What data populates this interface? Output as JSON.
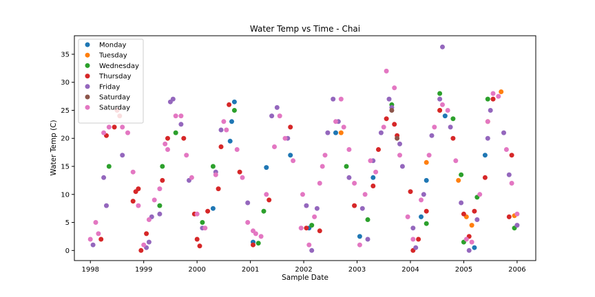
{
  "chart_data": {
    "type": "scatter",
    "title": "Water Temp vs Time - Chai",
    "xlabel": "Sample Date",
    "ylabel": "Water Temp (C)",
    "xlim": [
      1997.7,
      2006.35
    ],
    "ylim": [
      -1.8,
      38.3
    ],
    "xticks": [
      1998,
      1999,
      2000,
      2001,
      2002,
      2003,
      2004,
      2005,
      2006
    ],
    "yticks": [
      0,
      5,
      10,
      15,
      20,
      25,
      30,
      35
    ],
    "legend_position": "upper-left",
    "grid": false,
    "series": [
      {
        "name": "Monday",
        "color": "#1f77b4",
        "points": [
          [
            2000.3,
            7.5
          ],
          [
            2000.65,
            23.0
          ],
          [
            2000.62,
            19.5
          ],
          [
            2000.7,
            26.5
          ],
          [
            2001.05,
            1.5
          ],
          [
            2001.3,
            14.8
          ],
          [
            2001.75,
            17.0
          ],
          [
            2002.1,
            4.0
          ],
          [
            2002.6,
            21.0
          ],
          [
            2003.05,
            2.5
          ],
          [
            2003.3,
            13.0
          ],
          [
            2004.2,
            6.0
          ],
          [
            2004.3,
            12.5
          ],
          [
            2004.65,
            24.0
          ],
          [
            2005.2,
            0.5
          ],
          [
            2005.4,
            17.0
          ]
        ]
      },
      {
        "name": "Tuesday",
        "color": "#ff7f0e",
        "points": [
          [
            2002.7,
            21.0
          ],
          [
            2004.3,
            15.7
          ],
          [
            2004.55,
            25.0
          ],
          [
            2004.9,
            12.5
          ],
          [
            2005.05,
            6.0
          ],
          [
            2005.15,
            4.5
          ],
          [
            2005.45,
            23.0
          ],
          [
            2005.7,
            28.3
          ],
          [
            2005.95,
            6.2
          ]
        ]
      },
      {
        "name": "Wednesday",
        "color": "#2ca02c",
        "points": [
          [
            1998.35,
            15.0
          ],
          [
            1999.3,
            8.0
          ],
          [
            1999.35,
            15.0
          ],
          [
            1999.6,
            21.0
          ],
          [
            2000.1,
            5.0
          ],
          [
            2000.3,
            15.0
          ],
          [
            2000.7,
            25.0
          ],
          [
            2001.15,
            1.3
          ],
          [
            2001.25,
            7.0
          ],
          [
            2002.15,
            4.5
          ],
          [
            2002.8,
            15.0
          ],
          [
            2003.2,
            5.5
          ],
          [
            2003.65,
            26.0
          ],
          [
            2004.3,
            4.8
          ],
          [
            2004.55,
            28.0
          ],
          [
            2004.8,
            23.5
          ],
          [
            2004.95,
            13.5
          ],
          [
            2005.0,
            1.5
          ],
          [
            2005.25,
            9.5
          ],
          [
            2005.45,
            27.0
          ],
          [
            2005.95,
            4.0
          ]
        ]
      },
      {
        "name": "Thursday",
        "color": "#d62728",
        "points": [
          [
            1998.2,
            2.0
          ],
          [
            1998.3,
            20.5
          ],
          [
            1998.45,
            22.0
          ],
          [
            1998.5,
            25.0
          ],
          [
            1998.55,
            24.0
          ],
          [
            1998.8,
            8.8
          ],
          [
            1998.85,
            10.5
          ],
          [
            1998.9,
            11.0
          ],
          [
            1998.95,
            0.0
          ],
          [
            1999.05,
            3.0
          ],
          [
            1999.35,
            12.5
          ],
          [
            1999.45,
            20.0
          ],
          [
            1999.75,
            20.0
          ],
          [
            1999.95,
            6.5
          ],
          [
            2000.0,
            2.0
          ],
          [
            2000.05,
            0.8
          ],
          [
            2000.2,
            7.0
          ],
          [
            2000.4,
            11.0
          ],
          [
            2000.45,
            18.5
          ],
          [
            2000.6,
            26.0
          ],
          [
            2000.8,
            14.0
          ],
          [
            2001.05,
            1.0
          ],
          [
            2001.35,
            9.0
          ],
          [
            2001.75,
            22.0
          ],
          [
            2002.05,
            4.0
          ],
          [
            2002.3,
            3.5
          ],
          [
            2002.95,
            8.0
          ],
          [
            2003.3,
            11.5
          ],
          [
            2003.4,
            18.0
          ],
          [
            2003.55,
            23.5
          ],
          [
            2003.7,
            22.5
          ],
          [
            2003.75,
            20.5
          ],
          [
            2004.0,
            10.5
          ],
          [
            2004.05,
            0.0
          ],
          [
            2004.15,
            2.0
          ],
          [
            2004.3,
            7.0
          ],
          [
            2004.55,
            25.0
          ],
          [
            2004.8,
            20.0
          ],
          [
            2005.0,
            6.5
          ],
          [
            2005.1,
            2.5
          ],
          [
            2005.2,
            7.0
          ],
          [
            2005.4,
            13.0
          ],
          [
            2005.55,
            27.0
          ],
          [
            2005.85,
            6.0
          ],
          [
            2005.9,
            17.0
          ]
        ]
      },
      {
        "name": "Friday",
        "color": "#9467bd",
        "points": [
          [
            1998.05,
            1.0
          ],
          [
            1998.25,
            13.0
          ],
          [
            1998.3,
            8.0
          ],
          [
            1998.6,
            17.0
          ],
          [
            1999.05,
            0.5
          ],
          [
            1999.1,
            1.5
          ],
          [
            1999.15,
            6.0
          ],
          [
            1999.3,
            6.5
          ],
          [
            1999.5,
            26.5
          ],
          [
            1999.55,
            27.0
          ],
          [
            1999.7,
            22.5
          ],
          [
            1999.85,
            12.5
          ],
          [
            2000.1,
            4.0
          ],
          [
            2000.35,
            14.0
          ],
          [
            2000.45,
            21.5
          ],
          [
            2000.95,
            8.5
          ],
          [
            2001.4,
            24.0
          ],
          [
            2001.5,
            25.5
          ],
          [
            2001.7,
            20.0
          ],
          [
            2002.05,
            8.0
          ],
          [
            2002.15,
            0.0
          ],
          [
            2002.25,
            7.5
          ],
          [
            2002.45,
            21.0
          ],
          [
            2002.55,
            27.0
          ],
          [
            2002.65,
            23.0
          ],
          [
            2002.85,
            13.0
          ],
          [
            2003.1,
            7.5
          ],
          [
            2003.2,
            2.0
          ],
          [
            2003.3,
            16.0
          ],
          [
            2003.45,
            21.0
          ],
          [
            2003.6,
            27.0
          ],
          [
            2003.65,
            25.5
          ],
          [
            2003.8,
            19.0
          ],
          [
            2003.85,
            15.0
          ],
          [
            2004.05,
            4.0
          ],
          [
            2004.1,
            0.5
          ],
          [
            2004.25,
            10.0
          ],
          [
            2004.4,
            20.5
          ],
          [
            2004.55,
            27.0
          ],
          [
            2004.6,
            36.3
          ],
          [
            2004.75,
            22.0
          ],
          [
            2004.95,
            8.5
          ],
          [
            2005.1,
            0.0
          ],
          [
            2005.25,
            5.5
          ],
          [
            2005.45,
            20.0
          ],
          [
            2005.5,
            25.0
          ],
          [
            2005.75,
            21.0
          ],
          [
            2005.85,
            13.5
          ],
          [
            2006.0,
            4.5
          ]
        ]
      },
      {
        "name": "Saturday",
        "color": "#8c564b",
        "points": [
          [
            2003.65,
            25.0
          ],
          [
            2003.75,
            20.0
          ]
        ]
      },
      {
        "name": "Saturday",
        "color": "#e377c2",
        "points": [
          [
            1998.0,
            2.0
          ],
          [
            1998.1,
            5.0
          ],
          [
            1998.15,
            3.0
          ],
          [
            1998.25,
            21.0
          ],
          [
            1998.35,
            22.0
          ],
          [
            1998.6,
            22.0
          ],
          [
            1998.7,
            21.0
          ],
          [
            1998.8,
            14.0
          ],
          [
            1998.9,
            8.0
          ],
          [
            1999.0,
            1.0
          ],
          [
            1999.1,
            5.5
          ],
          [
            1999.2,
            9.0
          ],
          [
            1999.3,
            11.0
          ],
          [
            1999.4,
            19.0
          ],
          [
            1999.45,
            18.0
          ],
          [
            1999.6,
            24.0
          ],
          [
            1999.7,
            24.0
          ],
          [
            1999.8,
            17.0
          ],
          [
            1999.9,
            13.0
          ],
          [
            2000.0,
            6.5
          ],
          [
            2000.15,
            4.0
          ],
          [
            2000.35,
            13.5
          ],
          [
            2000.5,
            23.0
          ],
          [
            2000.55,
            21.5
          ],
          [
            2000.75,
            18.0
          ],
          [
            2000.85,
            13.0
          ],
          [
            2000.95,
            5.0
          ],
          [
            2001.05,
            3.5
          ],
          [
            2001.1,
            3.0
          ],
          [
            2001.2,
            2.5
          ],
          [
            2001.3,
            10.0
          ],
          [
            2001.45,
            18.5
          ],
          [
            2001.55,
            24.0
          ],
          [
            2001.65,
            20.0
          ],
          [
            2001.8,
            16.0
          ],
          [
            2001.95,
            4.0
          ],
          [
            2001.98,
            10.0
          ],
          [
            2002.1,
            1.0
          ],
          [
            2002.2,
            6.0
          ],
          [
            2002.3,
            12.0
          ],
          [
            2002.35,
            15.0
          ],
          [
            2002.4,
            17.0
          ],
          [
            2002.6,
            23.0
          ],
          [
            2002.7,
            27.0
          ],
          [
            2002.75,
            22.0
          ],
          [
            2002.85,
            18.0
          ],
          [
            2002.95,
            12.0
          ],
          [
            2003.05,
            1.0
          ],
          [
            2003.15,
            10.0
          ],
          [
            2003.25,
            16.0
          ],
          [
            2003.35,
            14.0
          ],
          [
            2003.5,
            22.0
          ],
          [
            2003.55,
            32.0
          ],
          [
            2003.7,
            29.0
          ],
          [
            2003.8,
            17.0
          ],
          [
            2003.95,
            6.0
          ],
          [
            2004.05,
            2.0
          ],
          [
            2004.2,
            9.0
          ],
          [
            2004.35,
            17.0
          ],
          [
            2004.45,
            22.0
          ],
          [
            2004.6,
            26.0
          ],
          [
            2004.7,
            25.0
          ],
          [
            2004.85,
            16.0
          ],
          [
            2005.05,
            2.0
          ],
          [
            2005.15,
            1.5
          ],
          [
            2005.3,
            10.0
          ],
          [
            2005.45,
            23.0
          ],
          [
            2005.55,
            28.0
          ],
          [
            2005.65,
            27.5
          ],
          [
            2005.8,
            18.0
          ],
          [
            2005.9,
            12.0
          ],
          [
            2006.0,
            6.5
          ]
        ]
      }
    ]
  }
}
